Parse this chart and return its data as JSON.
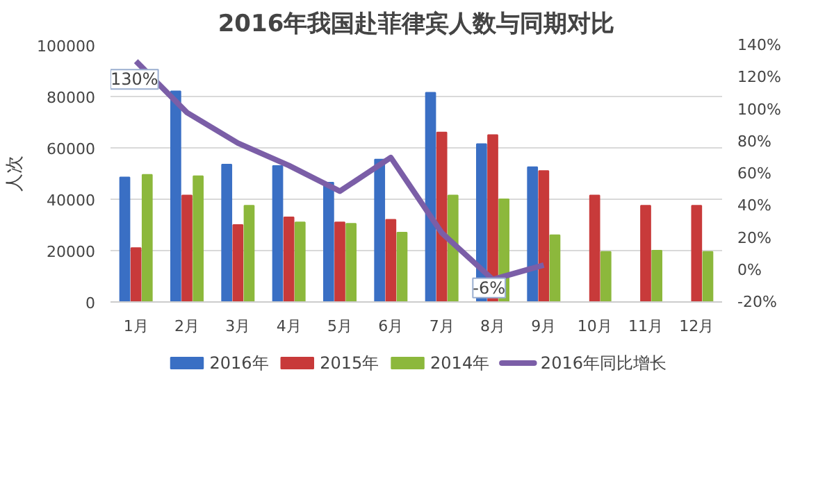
{
  "chart_data": {
    "type": "bar",
    "title": "2016年我国赴菲律宾人数与同期对比",
    "ylabel": "人次",
    "categories": [
      "1月",
      "2月",
      "3月",
      "4月",
      "5月",
      "6月",
      "7月",
      "8月",
      "9月",
      "10月",
      "11月",
      "12月"
    ],
    "series": [
      {
        "name": "2016年",
        "color": "#3a6fc4",
        "values": [
          48500,
          82000,
          53500,
          53000,
          46500,
          55500,
          81500,
          61500,
          52500,
          null,
          null,
          null
        ]
      },
      {
        "name": "2015年",
        "color": "#c83a3a",
        "values": [
          21000,
          41500,
          30000,
          33000,
          31000,
          32000,
          66000,
          65000,
          51000,
          41500,
          37500,
          37500
        ]
      },
      {
        "name": "2014年",
        "color": "#8cb83c",
        "values": [
          49500,
          49000,
          37500,
          31000,
          30500,
          27000,
          41500,
          40000,
          26000,
          19500,
          20000,
          19500
        ]
      },
      {
        "name": "2016年同比增长",
        "type": "line",
        "axis": "y2",
        "color": "#7b5ea7",
        "values": [
          130,
          98,
          79,
          65,
          49,
          70,
          23,
          -6,
          3,
          null,
          null,
          null
        ],
        "value_labels": [
          "130%",
          null,
          null,
          null,
          null,
          null,
          null,
          "-6%",
          null,
          null,
          null,
          null
        ]
      }
    ],
    "ylim": [
      0,
      100000
    ],
    "yticks": [
      0,
      20000,
      40000,
      60000,
      80000,
      100000
    ],
    "y2lim": [
      -20,
      140
    ],
    "y2ticks": [
      {
        "value": -20,
        "label": "-20%"
      },
      {
        "value": 0,
        "label": "0%"
      },
      {
        "value": 20,
        "label": "20%"
      },
      {
        "value": 40,
        "label": "40%"
      },
      {
        "value": 60,
        "label": "60%"
      },
      {
        "value": 80,
        "label": "80%"
      },
      {
        "value": 100,
        "label": "100%"
      },
      {
        "value": 120,
        "label": "120%"
      },
      {
        "value": 140,
        "label": "140%"
      }
    ],
    "grid": "y",
    "legend": "bottom",
    "marker": "none",
    "line_style": "solid"
  }
}
